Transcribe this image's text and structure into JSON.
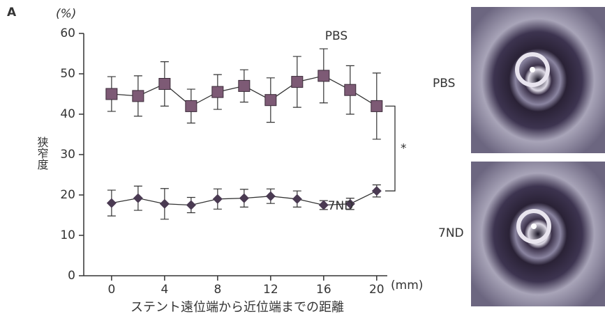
{
  "chart_data": {
    "type": "line",
    "panel_label": "A",
    "y_unit": "(%)",
    "x_unit": "(mm)",
    "ylabel": "狭窄度",
    "xlabel": "ステント遠位端から近位端までの距離",
    "x": [
      0,
      2,
      4,
      6,
      8,
      10,
      12,
      14,
      16,
      18,
      20
    ],
    "xlim": [
      -2.1,
      20.8
    ],
    "xticks": [
      0,
      4,
      8,
      12,
      16,
      20
    ],
    "ylim": [
      0,
      60
    ],
    "yticks": [
      0,
      10,
      20,
      30,
      40,
      50,
      60
    ],
    "series": [
      {
        "name": "PBS",
        "color": "#7d5a75",
        "marker": "square",
        "values": [
          45,
          44.5,
          47.5,
          42,
          45.5,
          47,
          43.5,
          48,
          49.5,
          46,
          42
        ],
        "errors": [
          4.3,
          5,
          5.5,
          4.2,
          4.3,
          4,
          5.5,
          6.3,
          6.7,
          6,
          8.2
        ]
      },
      {
        "name": "7ND",
        "color": "#4a3a52",
        "marker": "diamond",
        "values": [
          18,
          19.2,
          17.8,
          17.5,
          19,
          19.2,
          19.7,
          19,
          17.5,
          17.8,
          21
        ],
        "errors": [
          3.2,
          3,
          3.8,
          1.9,
          2.5,
          2.2,
          1.8,
          2,
          1.1,
          1.4,
          1.5
        ]
      }
    ],
    "annotation": "*"
  },
  "images": {
    "labels": [
      "PBS",
      "7ND"
    ]
  }
}
